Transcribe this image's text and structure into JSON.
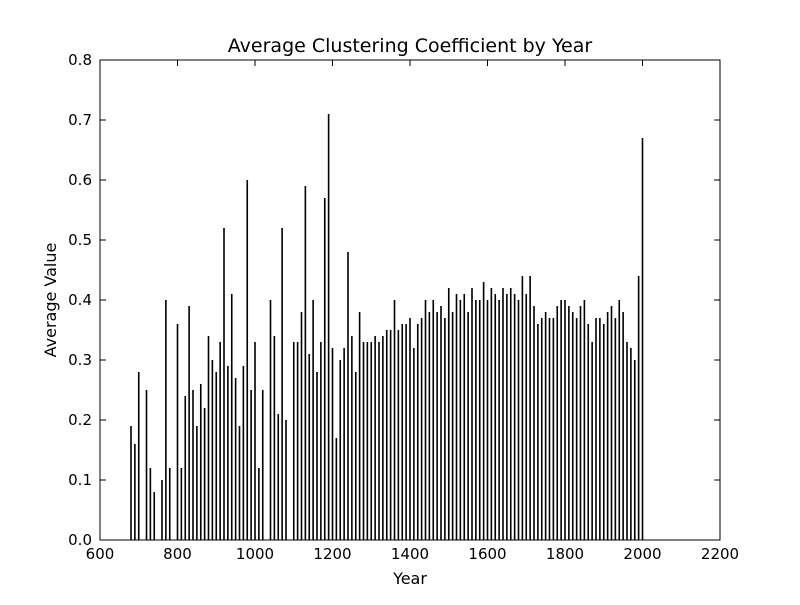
{
  "chart_data": {
    "type": "bar",
    "title": "Average Clustering Coefficient by Year",
    "xlabel": "Year",
    "ylabel": "Average Value",
    "xlim": [
      600,
      2200
    ],
    "ylim": [
      0,
      0.8
    ],
    "xticks": [
      "600",
      "800",
      "1000",
      "1200",
      "1400",
      "1600",
      "1800",
      "2000",
      "2200"
    ],
    "yticks": [
      "0.0",
      "0.1",
      "0.2",
      "0.3",
      "0.4",
      "0.5",
      "0.6",
      "0.7",
      "0.8"
    ],
    "grid": false,
    "legend": "none",
    "bar_color": "#000000",
    "x": [
      680,
      690,
      700,
      720,
      730,
      740,
      760,
      770,
      780,
      800,
      810,
      820,
      830,
      840,
      850,
      860,
      870,
      880,
      890,
      900,
      910,
      920,
      930,
      940,
      950,
      960,
      970,
      980,
      990,
      1000,
      1010,
      1020,
      1040,
      1050,
      1060,
      1070,
      1080,
      1100,
      1110,
      1120,
      1130,
      1140,
      1150,
      1160,
      1170,
      1180,
      1190,
      1200,
      1210,
      1220,
      1230,
      1240,
      1250,
      1260,
      1270,
      1280,
      1290,
      1300,
      1310,
      1320,
      1330,
      1340,
      1350,
      1360,
      1370,
      1380,
      1390,
      1400,
      1410,
      1420,
      1430,
      1440,
      1450,
      1460,
      1470,
      1480,
      1490,
      1500,
      1510,
      1520,
      1530,
      1540,
      1550,
      1560,
      1570,
      1580,
      1590,
      1600,
      1610,
      1620,
      1630,
      1640,
      1650,
      1660,
      1670,
      1680,
      1690,
      1700,
      1710,
      1720,
      1730,
      1740,
      1750,
      1760,
      1770,
      1780,
      1790,
      1800,
      1810,
      1820,
      1830,
      1840,
      1850,
      1860,
      1870,
      1880,
      1890,
      1900,
      1910,
      1920,
      1930,
      1940,
      1950,
      1960,
      1970,
      1980,
      1990,
      2000
    ],
    "values": [
      0.19,
      0.16,
      0.28,
      0.25,
      0.12,
      0.08,
      0.1,
      0.4,
      0.12,
      0.36,
      0.12,
      0.24,
      0.39,
      0.25,
      0.19,
      0.26,
      0.22,
      0.34,
      0.3,
      0.28,
      0.33,
      0.52,
      0.29,
      0.41,
      0.27,
      0.19,
      0.29,
      0.6,
      0.25,
      0.33,
      0.12,
      0.25,
      0.4,
      0.34,
      0.21,
      0.52,
      0.2,
      0.33,
      0.33,
      0.38,
      0.59,
      0.31,
      0.4,
      0.28,
      0.33,
      0.57,
      0.71,
      0.32,
      0.17,
      0.3,
      0.32,
      0.48,
      0.34,
      0.28,
      0.38,
      0.33,
      0.33,
      0.33,
      0.34,
      0.33,
      0.34,
      0.35,
      0.35,
      0.4,
      0.35,
      0.36,
      0.36,
      0.37,
      0.32,
      0.36,
      0.37,
      0.4,
      0.38,
      0.4,
      0.38,
      0.39,
      0.37,
      0.42,
      0.38,
      0.41,
      0.4,
      0.41,
      0.38,
      0.42,
      0.4,
      0.4,
      0.43,
      0.4,
      0.42,
      0.41,
      0.4,
      0.42,
      0.41,
      0.42,
      0.41,
      0.4,
      0.44,
      0.41,
      0.44,
      0.39,
      0.36,
      0.37,
      0.38,
      0.37,
      0.37,
      0.39,
      0.4,
      0.4,
      0.39,
      0.38,
      0.37,
      0.39,
      0.4,
      0.36,
      0.33,
      0.37,
      0.37,
      0.36,
      0.38,
      0.39,
      0.37,
      0.4,
      0.38,
      0.33,
      0.32,
      0.3,
      0.44,
      0.67
    ]
  }
}
